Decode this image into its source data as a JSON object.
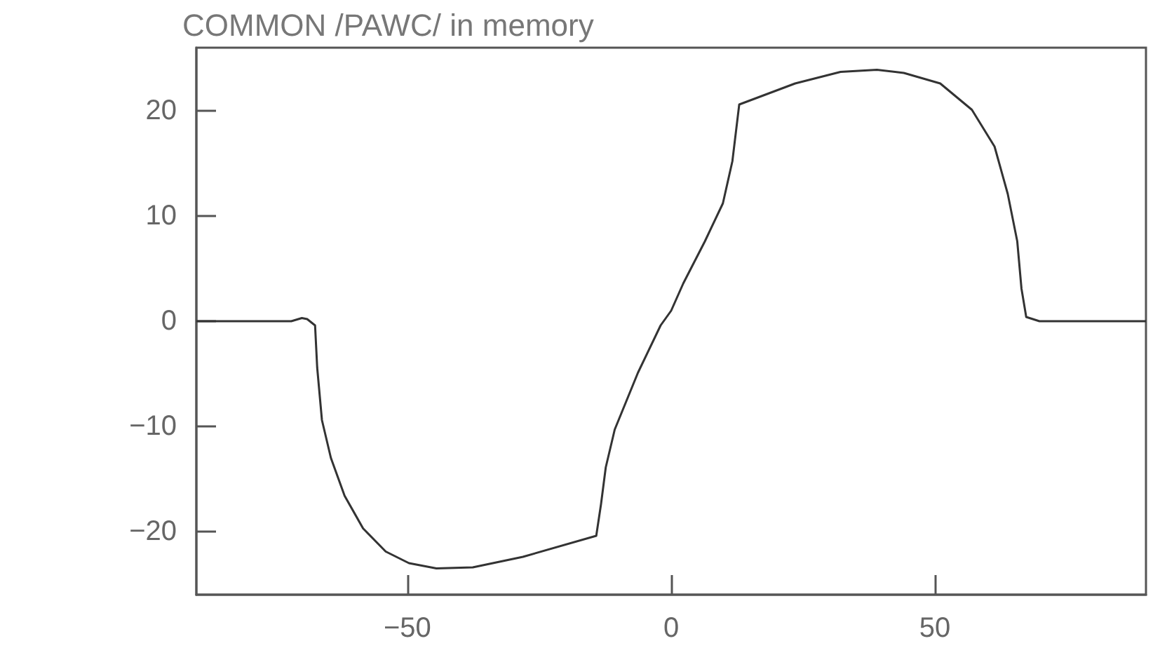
{
  "chart_data": {
    "type": "line",
    "title": "COMMON /PAWC/ in memory",
    "xlim": [
      -90,
      90
    ],
    "xticks": [
      -50,
      0,
      50
    ],
    "ylim": [
      -26,
      26
    ],
    "yticks": [
      -20,
      -10,
      0,
      10,
      20
    ],
    "marker": "none",
    "line_style": "solid",
    "series": [
      {
        "color": "#333333",
        "x": [
          -90,
          -72,
          -70,
          -69,
          -67.5,
          -67.1,
          -66.2,
          -64.5,
          -61.9,
          -58.4,
          -54.1,
          -49.7,
          -44.5,
          -37.6,
          -28.1,
          -14.2,
          -13.3,
          -12.4,
          -10.7,
          -6.3,
          -2,
          0,
          2.3,
          6.4,
          9.8,
          11.6,
          12.9,
          23.5,
          32.1,
          39,
          44.1,
          51,
          57,
          61.3,
          63.8,
          65.6,
          66.4,
          67.3,
          69.8,
          90
        ],
        "values": [
          0,
          0,
          0.3,
          0.2,
          -0.4,
          -4.4,
          -9.4,
          -13,
          -16.6,
          -19.7,
          -21.9,
          -23,
          -23.5,
          -23.4,
          -22.4,
          -20.4,
          -17.4,
          -13.9,
          -10.3,
          -4.9,
          -0.4,
          1,
          3.6,
          7.6,
          11.2,
          15.2,
          20.6,
          22.6,
          23.7,
          23.9,
          23.6,
          22.6,
          20.1,
          16.6,
          12.1,
          7.6,
          3.1,
          0.4,
          0,
          0
        ]
      }
    ]
  }
}
